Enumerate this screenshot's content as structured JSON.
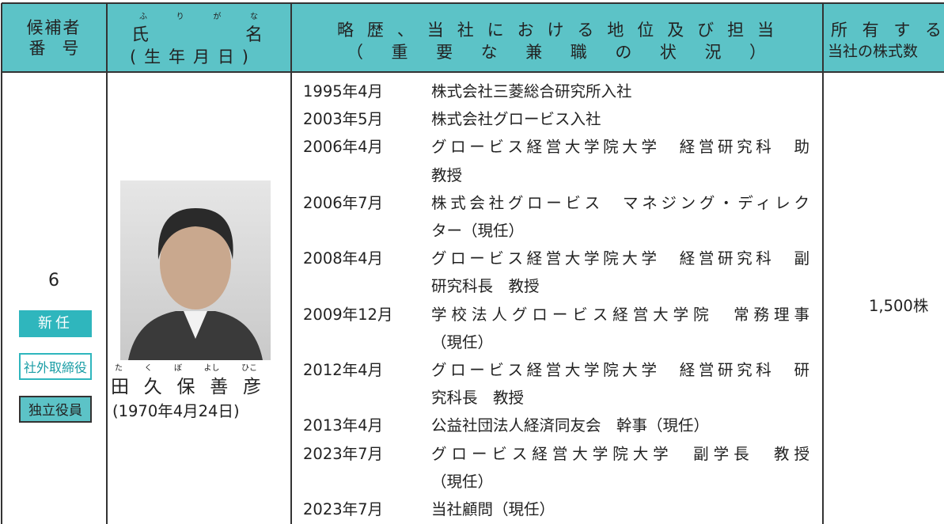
{
  "header": {
    "number": [
      "候補者",
      "番　号"
    ],
    "name": {
      "furigana": [
        "ふ",
        "り",
        "が",
        "な"
      ],
      "label": [
        "氏",
        "名"
      ],
      "birth": "(生年月日)"
    },
    "career": [
      "略歴、当社における地位及び担当",
      "（重要な兼職の状況）"
    ],
    "shares": [
      "所有する",
      "当社の株式数"
    ]
  },
  "candidate": {
    "number": "6",
    "badges": [
      "新任",
      "社外取締役",
      "独立役員"
    ],
    "name_furigana": [
      "た",
      "く",
      "ぼ",
      "よし",
      "ひこ"
    ],
    "name": [
      "田",
      "久",
      "保",
      "善",
      "彦"
    ],
    "birth": "(1970年4月24日)",
    "career": [
      {
        "date": "1995年4月",
        "lines": [
          "株式会社三菱総合研究所入社"
        ]
      },
      {
        "date": "2003年5月",
        "lines": [
          "株式会社グロービス入社"
        ]
      },
      {
        "date": "2006年4月",
        "lines": [
          "グロービス経営大学院大学　経営研究科　助",
          "教授"
        ]
      },
      {
        "date": "2006年7月",
        "lines": [
          "株式会社グロービス　マネジング・ディレク",
          "ター（現任）"
        ]
      },
      {
        "date": "2008年4月",
        "lines": [
          "グロービス経営大学院大学　経営研究科　副",
          "研究科長　教授"
        ]
      },
      {
        "date": "2009年12月",
        "lines": [
          "学校法人グロービス経営大学院　常務理事",
          "（現任）"
        ]
      },
      {
        "date": "2012年4月",
        "lines": [
          "グロービス経営大学院大学　経営研究科　研",
          "究科長　教授"
        ]
      },
      {
        "date": "2013年4月",
        "lines": [
          "公益社団法人経済同友会　幹事（現任）"
        ]
      },
      {
        "date": "2023年7月",
        "lines": [
          "グロービス経営大学院大学　副学長　教授",
          "（現任）"
        ]
      },
      {
        "date": "2023年7月",
        "lines": [
          "当社顧問（現任）"
        ]
      }
    ],
    "shares": "1,500株"
  }
}
